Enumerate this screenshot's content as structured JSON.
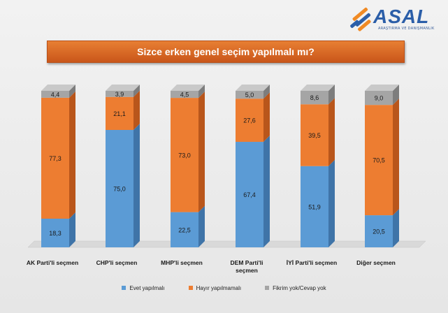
{
  "logo": {
    "text": "ASAL",
    "subtitle": "ARAŞTIRMA VE DANIŞMANLIK"
  },
  "colors": {
    "evet": "#5b9bd5",
    "hayir": "#ed7d31",
    "fikrim_yok": "#a5a5a5",
    "title_bar": "#e07a30"
  },
  "chart_data": {
    "type": "bar",
    "stacked": true,
    "title": "Sizce erken genel seçim yapılmalı mı?",
    "categories": [
      "AK Parti'li seçmen",
      "CHP'li seçmen",
      "MHP'li seçmen",
      "DEM Parti'li seçmen",
      "İYİ Parti'li seçmen",
      "Diğer seçmen"
    ],
    "series": [
      {
        "name": "Evet yapılmalı",
        "values": [
          18.3,
          75.0,
          22.5,
          67.4,
          51.9,
          20.5
        ]
      },
      {
        "name": "Hayır yapılmamalı",
        "values": [
          77.3,
          21.1,
          73.0,
          27.6,
          39.5,
          70.5
        ]
      },
      {
        "name": "Fikrim yok/Cevap yok",
        "values": [
          4.4,
          3.9,
          4.5,
          5.0,
          8.6,
          9.0
        ]
      }
    ],
    "value_labels": [
      [
        "18,3",
        "75,0",
        "22,5",
        "67,4",
        "51,9",
        "20,5"
      ],
      [
        "77,3",
        "21,1",
        "73,0",
        "27,6",
        "39,5",
        "70,5"
      ],
      [
        "4,4",
        "3,9",
        "4,5",
        "5,0",
        "8,6",
        "9,0"
      ]
    ],
    "ylim": [
      0,
      100
    ],
    "grid": false,
    "legend_position": "bottom"
  }
}
